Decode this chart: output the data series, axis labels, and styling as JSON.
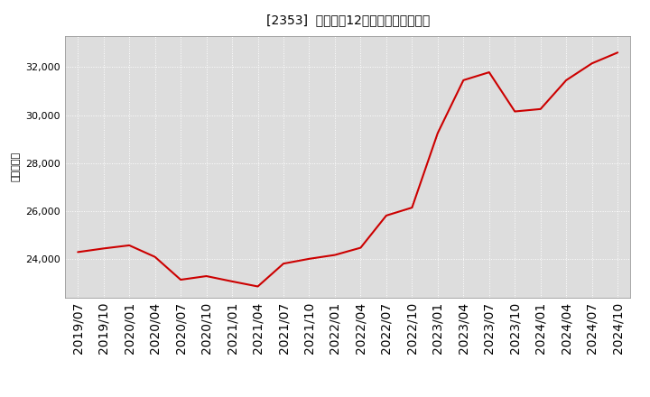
{
  "title": "[2353]  売上高の12か月移動合計の推移",
  "ylabel": "（百万円）",
  "line_color": "#cc0000",
  "background_color": "#ffffff",
  "plot_bg_color": "#dddddd",
  "grid_color": "#ffffff",
  "dates": [
    "2019/07",
    "2019/10",
    "2020/01",
    "2020/04",
    "2020/07",
    "2020/10",
    "2021/01",
    "2021/04",
    "2021/07",
    "2021/10",
    "2022/01",
    "2022/04",
    "2022/07",
    "2022/10",
    "2023/01",
    "2023/04",
    "2023/07",
    "2023/10",
    "2024/01",
    "2024/04",
    "2024/07",
    "2024/10"
  ],
  "values": [
    24300,
    24450,
    24580,
    24100,
    23150,
    23300,
    23080,
    22870,
    23820,
    24020,
    24180,
    24480,
    25820,
    26150,
    29250,
    31450,
    31780,
    30150,
    30250,
    31450,
    32150,
    32600
  ],
  "yticks": [
    24000,
    26000,
    28000,
    30000,
    32000
  ],
  "ylim": [
    22400,
    33300
  ],
  "title_fontsize": 12,
  "axis_fontsize": 8,
  "ylabel_fontsize": 8
}
